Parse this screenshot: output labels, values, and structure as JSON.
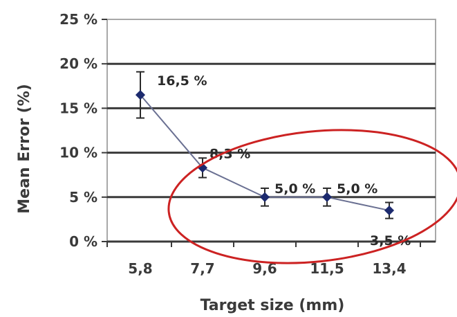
{
  "chart_data": {
    "type": "line",
    "title": "",
    "xlabel": "Target size (mm)",
    "ylabel": "Mean Error (%)",
    "categories": [
      "5,8",
      "7,7",
      "9,6",
      "11,5",
      "13,4"
    ],
    "y_ticks": [
      "0 %",
      "5 %",
      "10 %",
      "15 %",
      "20 %",
      "25 %"
    ],
    "ylim": [
      0,
      25
    ],
    "grid": true,
    "series": [
      {
        "values": [
          16.5,
          8.3,
          5.0,
          5.0,
          3.5
        ],
        "error": [
          2.6,
          1.1,
          1.0,
          1.0,
          0.9
        ],
        "data_labels": [
          "16,5 %",
          "8,3 %",
          "5,0 %",
          "5,0 %",
          "3,5 %"
        ],
        "color": "#1c2a6e"
      }
    ],
    "highlight": {
      "shape": "ellipse",
      "color": "#cc2222",
      "encloses_categories": [
        "7,7",
        "9,6",
        "11,5",
        "13,4"
      ]
    }
  }
}
